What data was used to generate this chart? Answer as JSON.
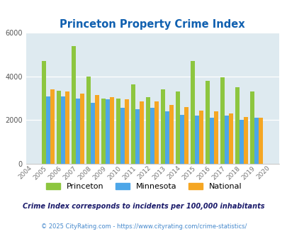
{
  "title": "Princeton Property Crime Index",
  "years": [
    2004,
    2005,
    2006,
    2007,
    2008,
    2009,
    2010,
    2011,
    2012,
    2013,
    2014,
    2015,
    2016,
    2017,
    2018,
    2019,
    2020
  ],
  "princeton": [
    null,
    4700,
    3350,
    5400,
    4000,
    3000,
    3000,
    3650,
    3050,
    3400,
    3300,
    4700,
    3800,
    3950,
    3500,
    3300,
    null
  ],
  "minnesota": [
    null,
    3100,
    3100,
    3000,
    2800,
    2950,
    2550,
    2500,
    2550,
    2400,
    2250,
    2200,
    2100,
    2200,
    2000,
    2100,
    null
  ],
  "national": [
    null,
    3400,
    3300,
    3200,
    3150,
    3050,
    2950,
    2850,
    2850,
    2700,
    2600,
    2450,
    2400,
    2300,
    2150,
    2100,
    null
  ],
  "princeton_color": "#8dc63f",
  "minnesota_color": "#4da6e8",
  "national_color": "#f5a623",
  "bg_color": "#deeaf0",
  "ylim": [
    0,
    6000
  ],
  "yticks": [
    0,
    2000,
    4000,
    6000
  ],
  "footnote1": "Crime Index corresponds to incidents per 100,000 inhabitants",
  "footnote2": "© 2025 CityRating.com - https://www.cityrating.com/crime-statistics/",
  "title_color": "#1060b0",
  "footnote1_color": "#1a1a6a",
  "footnote2_color": "#4488cc"
}
